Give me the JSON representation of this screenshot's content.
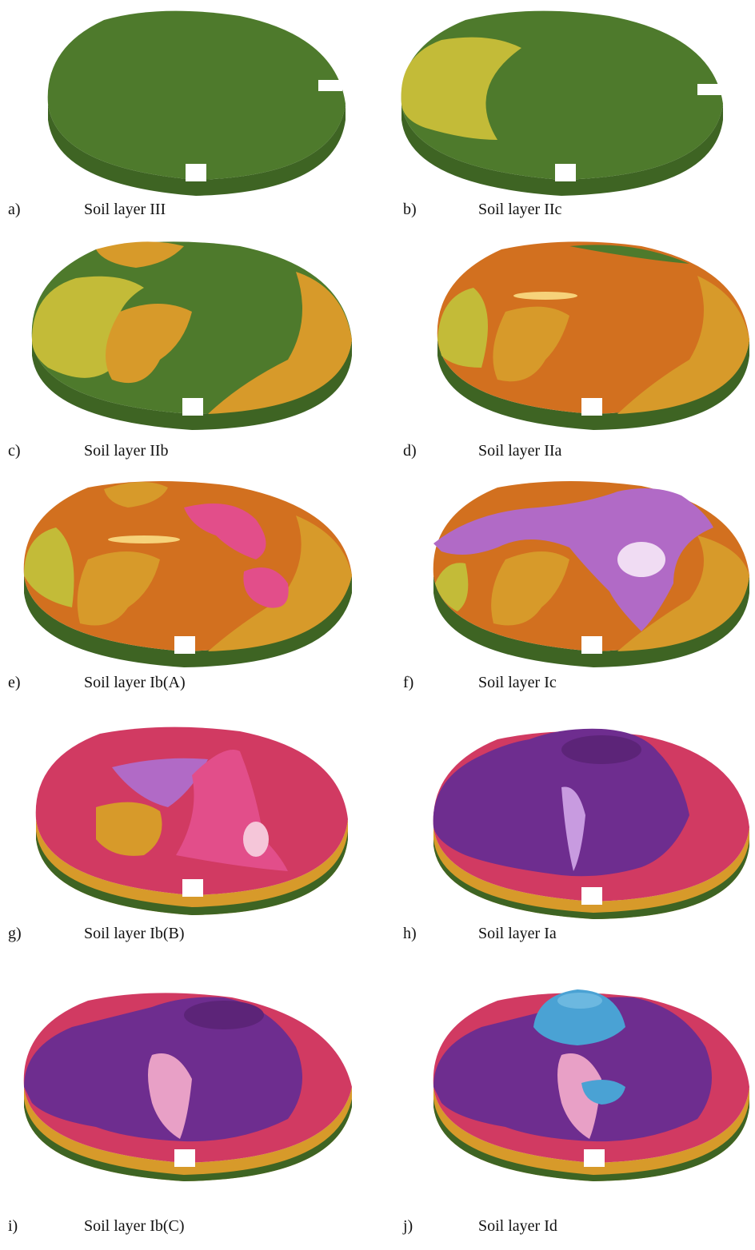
{
  "colors": {
    "layer_III": "#4e7a2c",
    "layer_IIc": "#c3bb38",
    "layer_IIb": "#d79a2a",
    "layer_IIa": "#d2701f",
    "layer_Ib_A": "#e24e8a",
    "layer_Ic": "#b16ac6",
    "layer_Ib_B": "#d13a62",
    "layer_Ia": "#6e2d8f",
    "layer_Id": "#4aa2d4",
    "background": "#ffffff"
  },
  "panels": [
    {
      "letter": "a)",
      "label": "Soil layer III"
    },
    {
      "letter": "b)",
      "label": "Soil layer IIc"
    },
    {
      "letter": "c)",
      "label": "Soil layer IIb"
    },
    {
      "letter": "d)",
      "label": "Soil layer IIa"
    },
    {
      "letter": "e)",
      "label": "Soil layer Ib(A)"
    },
    {
      "letter": "f)",
      "label": "Soil layer Ic"
    },
    {
      "letter": "g)",
      "label": "Soil layer Ib(B)"
    },
    {
      "letter": "h)",
      "label": "Soil layer Ia"
    },
    {
      "letter": "i)",
      "label": "Soil layer Ib(C)"
    },
    {
      "letter": "j)",
      "label": "Soil layer Id"
    }
  ]
}
